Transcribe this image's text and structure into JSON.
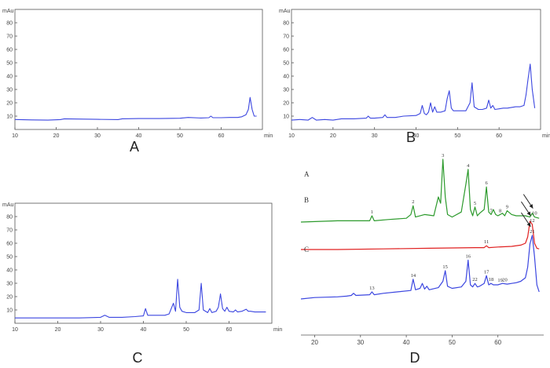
{
  "panel_letters": [
    "A",
    "B",
    "C",
    "D"
  ],
  "chart_data": [
    {
      "id": "A",
      "type": "line",
      "ylabel": "mAu",
      "xlabel": "min",
      "xlim": [
        10,
        70
      ],
      "ylim": [
        0,
        90
      ],
      "x_ticks": [
        10,
        20,
        30,
        40,
        50,
        60
      ],
      "y_ticks": [
        10,
        20,
        30,
        40,
        50,
        60,
        70,
        80
      ],
      "grid": false,
      "color": "#3b46e0",
      "series": [
        {
          "x": [
            10,
            14,
            18,
            21,
            22,
            25,
            30,
            35,
            36,
            40,
            45,
            50,
            52,
            55,
            57,
            57.5,
            58,
            60,
            62,
            64,
            65,
            66,
            66.6,
            67,
            67.5,
            68,
            68.6
          ],
          "y": [
            7.5,
            7.2,
            7,
            7.4,
            8,
            7.8,
            7.6,
            7.4,
            8,
            8.2,
            8.2,
            8.4,
            9,
            8.6,
            8.8,
            10,
            8.8,
            8.8,
            9,
            9,
            9.5,
            11,
            15,
            24,
            15,
            10,
            10
          ]
        }
      ]
    },
    {
      "id": "B",
      "type": "line",
      "ylabel": "mAu",
      "xlabel": "min",
      "xlim": [
        10,
        70
      ],
      "ylim": [
        0,
        90
      ],
      "x_ticks": [
        10,
        20,
        30,
        40,
        50,
        60
      ],
      "y_ticks": [
        10,
        20,
        30,
        40,
        50,
        60,
        70,
        80
      ],
      "grid": false,
      "color": "#3b46e0",
      "series": [
        {
          "x": [
            10,
            12,
            14,
            15,
            16,
            18,
            20,
            22,
            25,
            28,
            28.5,
            29,
            30,
            32,
            32.5,
            33,
            35,
            37,
            40,
            41,
            41.5,
            42,
            42.5,
            43,
            43.5,
            44,
            44.5,
            45,
            46,
            47,
            47.5,
            48,
            48.5,
            49,
            50,
            52,
            53,
            53.5,
            54,
            55,
            56,
            57,
            57.5,
            58,
            58.5,
            59,
            60,
            61,
            62,
            63,
            64,
            65,
            66,
            66.5,
            67,
            67.5,
            68,
            68.6
          ],
          "y": [
            7,
            7.5,
            7,
            9,
            7,
            7.5,
            7,
            8,
            8,
            8.5,
            10,
            8.5,
            8.5,
            9,
            11,
            9,
            9,
            10,
            10.5,
            12,
            18,
            12,
            11,
            13,
            20,
            13,
            17,
            13,
            13,
            14,
            23,
            29,
            16,
            14,
            14,
            14,
            20,
            35,
            17,
            15,
            15,
            16,
            22,
            16,
            18,
            15,
            15.5,
            16,
            16,
            16.5,
            17,
            17,
            18,
            26,
            38,
            49,
            30,
            16
          ]
        }
      ]
    },
    {
      "id": "C",
      "type": "line",
      "ylabel": "mAu",
      "xlabel": "min",
      "xlim": [
        10,
        70
      ],
      "ylim": [
        0,
        90
      ],
      "x_ticks": [
        10,
        20,
        30,
        40,
        50,
        60
      ],
      "y_ticks": [
        10,
        20,
        30,
        40,
        50,
        60,
        70,
        80
      ],
      "grid": false,
      "color": "#3b46e0",
      "series": [
        {
          "x": [
            10,
            15,
            20,
            25,
            30,
            31,
            32,
            35,
            38,
            40,
            40.5,
            41,
            42,
            45,
            46,
            47,
            47.5,
            48,
            48.5,
            49,
            50,
            52,
            53,
            53.5,
            54,
            55,
            55.5,
            56,
            57,
            57.5,
            58,
            58.5,
            59,
            59.5,
            60,
            61,
            61.5,
            62,
            63,
            64,
            64.5,
            65,
            66,
            67,
            68,
            68.6
          ],
          "y": [
            4,
            4,
            4,
            4,
            4.5,
            6,
            4.5,
            4.5,
            5,
            5.5,
            11,
            6,
            6,
            6,
            7,
            15,
            9,
            33,
            12,
            9,
            8,
            8,
            10,
            30,
            10,
            8,
            11,
            8,
            9,
            12,
            22,
            11,
            9,
            12,
            9,
            8.5,
            10,
            8.5,
            9,
            10.5,
            9,
            9,
            8.5,
            8.5,
            8.5,
            8.5
          ]
        }
      ]
    },
    {
      "id": "D",
      "type": "line",
      "xlim": [
        17,
        70
      ],
      "x_ticks": [
        20,
        30,
        40,
        50,
        60
      ],
      "grid": false,
      "series": [
        {
          "name": "A",
          "color": "#2c9a2c",
          "x": [
            17,
            25,
            30,
            32,
            32.5,
            33,
            36,
            40,
            41,
            41.5,
            42,
            44,
            46,
            47,
            47.5,
            48,
            48.5,
            49,
            50,
            52,
            53,
            53.5,
            54,
            54.5,
            55,
            55.5,
            56,
            57,
            57.5,
            58,
            58.5,
            59,
            59.5,
            60,
            60.5,
            61,
            61.5,
            62,
            63,
            64,
            65,
            66,
            67,
            67.5,
            68,
            69
          ],
          "y": [
            0,
            0.01,
            0.01,
            0.01,
            0.05,
            0.01,
            0.02,
            0.03,
            0.06,
            0.13,
            0.04,
            0.06,
            0.05,
            0.2,
            0.15,
            0.5,
            0.2,
            0.06,
            0.04,
            0.08,
            0.3,
            0.42,
            0.1,
            0.05,
            0.12,
            0.05,
            0.07,
            0.1,
            0.28,
            0.08,
            0.06,
            0.1,
            0.06,
            0.05,
            0.06,
            0.07,
            0.05,
            0.09,
            0.06,
            0.05,
            0.05,
            0.05,
            0.04,
            0.07,
            0.04,
            0.03
          ]
        },
        {
          "name": "B",
          "color": "#e02020",
          "x": [
            17,
            25,
            35,
            45,
            55,
            56,
            57,
            57.5,
            58,
            60,
            63,
            65,
            66,
            66.5,
            67,
            67.5,
            68,
            68.5,
            69
          ],
          "y": [
            0,
            0,
            0.01,
            0.02,
            0.03,
            0.03,
            0.03,
            0.06,
            0.03,
            0.04,
            0.05,
            0.07,
            0.1,
            0.2,
            0.45,
            0.4,
            0.1,
            0.02,
            0.01
          ]
        },
        {
          "name": "C",
          "color": "#3b46e0",
          "x": [
            17,
            20,
            25,
            27,
            28,
            28.5,
            29,
            32,
            32.5,
            33,
            35,
            38,
            41,
            41.5,
            42,
            43,
            43.5,
            44,
            44.5,
            45,
            47,
            48,
            48.5,
            49,
            50,
            52,
            53,
            53.5,
            54,
            54.5,
            55,
            55.5,
            56,
            57,
            57.5,
            58,
            58.5,
            59,
            60,
            61,
            62,
            63,
            64,
            65,
            66,
            66.5,
            67,
            67.5,
            68,
            68.5,
            69
          ],
          "y": [
            0,
            0.02,
            0.03,
            0.04,
            0.05,
            0.08,
            0.05,
            0.06,
            0.1,
            0.06,
            0.08,
            0.1,
            0.12,
            0.28,
            0.13,
            0.15,
            0.22,
            0.14,
            0.18,
            0.13,
            0.16,
            0.25,
            0.4,
            0.18,
            0.15,
            0.17,
            0.25,
            0.55,
            0.2,
            0.17,
            0.22,
            0.17,
            0.18,
            0.22,
            0.33,
            0.2,
            0.22,
            0.2,
            0.2,
            0.22,
            0.21,
            0.22,
            0.23,
            0.25,
            0.3,
            0.45,
            0.78,
            0.9,
            0.6,
            0.2,
            0.1
          ]
        }
      ],
      "peak_labels": [
        {
          "trace": "A",
          "label": "1",
          "x": 32.5
        },
        {
          "trace": "A",
          "label": "2",
          "x": 41.5
        },
        {
          "trace": "A",
          "label": "3",
          "x": 48
        },
        {
          "trace": "A",
          "label": "4",
          "x": 53.5
        },
        {
          "trace": "A",
          "label": "5",
          "x": 55
        },
        {
          "trace": "A",
          "label": "6",
          "x": 57.5
        },
        {
          "trace": "A",
          "label": "7",
          "x": 58.5
        },
        {
          "trace": "A",
          "label": "8",
          "x": 60.5
        },
        {
          "trace": "A",
          "label": "9",
          "x": 62
        },
        {
          "trace": "A",
          "label": "10",
          "x": 68
        },
        {
          "trace": "B",
          "label": "11",
          "x": 57.5
        },
        {
          "trace": "B",
          "label": "12",
          "x": 67.5
        },
        {
          "trace": "C",
          "label": "13",
          "x": 32.5
        },
        {
          "trace": "C",
          "label": "14",
          "x": 41.5
        },
        {
          "trace": "C",
          "label": "15",
          "x": 48.5
        },
        {
          "trace": "C",
          "label": "16",
          "x": 53.5
        },
        {
          "trace": "C",
          "label": "17",
          "x": 57.5
        },
        {
          "trace": "C",
          "label": "18",
          "x": 58.5
        },
        {
          "trace": "C",
          "label": "19",
          "x": 60.5
        },
        {
          "trace": "C",
          "label": "20",
          "x": 61.5
        },
        {
          "trace": "C",
          "label": "21",
          "x": 67.5
        },
        {
          "trace": "C",
          "label": "22",
          "x": 55
        }
      ],
      "arrows": [
        {
          "trace": "A",
          "target": "10"
        },
        {
          "trace": "B",
          "target": "12"
        },
        {
          "trace": "C",
          "target": "21"
        }
      ]
    }
  ]
}
